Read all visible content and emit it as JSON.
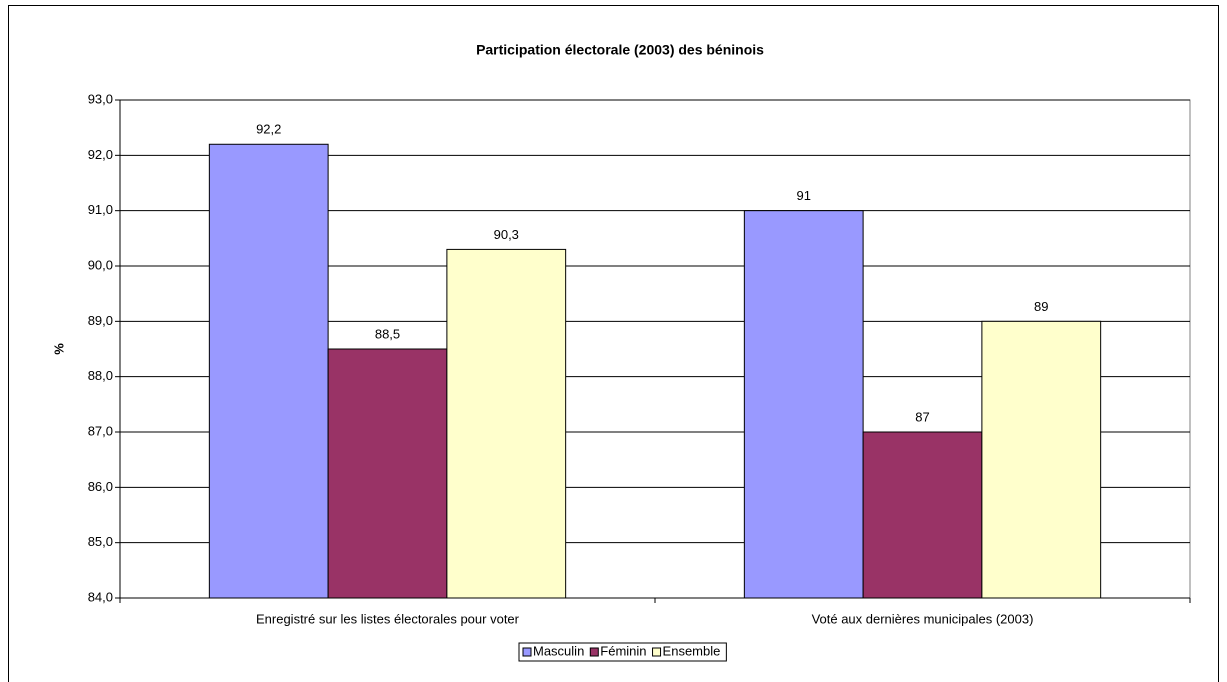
{
  "chart_data": {
    "type": "bar",
    "title": "Participation électorale (2003) des béninois",
    "y_label": "%",
    "categories": [
      "Enregistré sur les listes électorales pour voter",
      "Voté aux dernières municipales (2003)"
    ],
    "series": [
      {
        "name": "Masculin",
        "color": "#9999ff",
        "values": [
          92.2,
          91
        ],
        "value_labels": [
          "92,2",
          "91"
        ]
      },
      {
        "name": "Féminin",
        "color": "#993366",
        "values": [
          88.5,
          87
        ],
        "value_labels": [
          "88,5",
          "87"
        ]
      },
      {
        "name": "Ensemble",
        "color": "#ffffcc",
        "values": [
          90.3,
          89
        ],
        "value_labels": [
          "90,3",
          "89"
        ]
      }
    ],
    "ylim": [
      84,
      93
    ],
    "yticks": [
      {
        "value": 84,
        "label": "84,0"
      },
      {
        "value": 85,
        "label": "85,0"
      },
      {
        "value": 86,
        "label": "86,0"
      },
      {
        "value": 87,
        "label": "87,0"
      },
      {
        "value": 88,
        "label": "88,0"
      },
      {
        "value": 89,
        "label": "89,0"
      },
      {
        "value": 90,
        "label": "90,0"
      },
      {
        "value": 91,
        "label": "91,0"
      },
      {
        "value": 92,
        "label": "92,0"
      },
      {
        "value": 93,
        "label": "93,0"
      }
    ],
    "grid": true,
    "legend": "bottom"
  }
}
